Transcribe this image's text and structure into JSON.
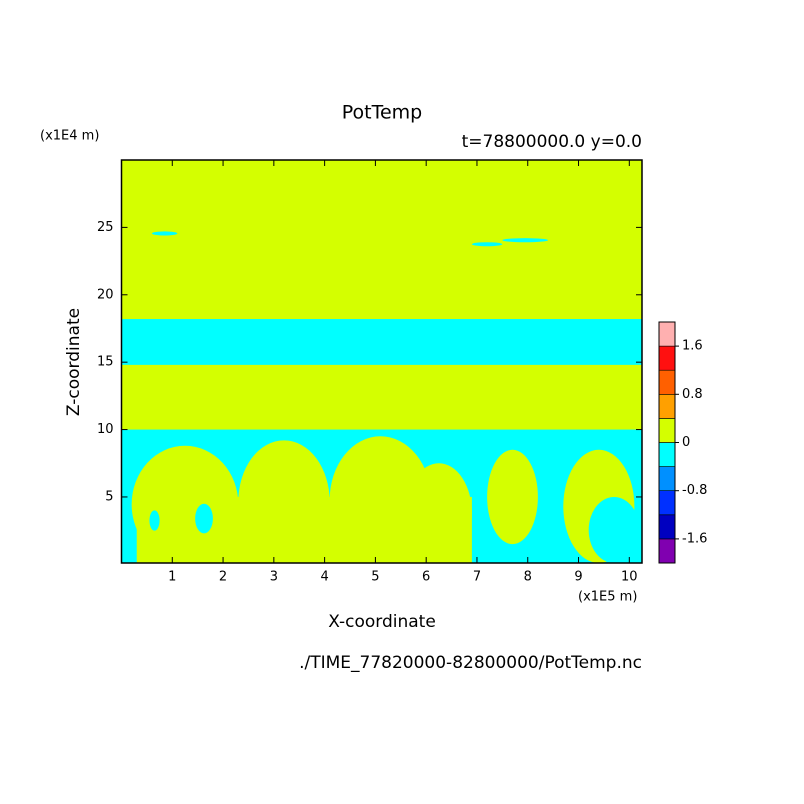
{
  "chart_data": {
    "type": "contour",
    "title": "PotTemp",
    "subtitle": "t=78800000.0 y=0.0",
    "x_label": "X-coordinate",
    "y_label": "Z-coordinate",
    "x_unit": "(x1E5 m)",
    "y_unit": "(x1E4 m)",
    "footer": "./TIME_77820000-82800000/PotTemp.nc",
    "xlim": [
      0,
      10.25
    ],
    "ylim": [
      0.1,
      30
    ],
    "xticks": [
      1,
      2,
      3,
      4,
      5,
      6,
      7,
      8,
      9,
      10
    ],
    "yticks": [
      5,
      10,
      15,
      20,
      25
    ],
    "colorbar": {
      "levels": [
        -2,
        -1.6,
        -1.2,
        -0.8,
        -0.4,
        0,
        0.4,
        0.8,
        1.2,
        1.6,
        2
      ],
      "colors": [
        "#8000b0",
        "#0000c0",
        "#0030ff",
        "#0090ff",
        "#00ffff",
        "#d4ff00",
        "#ffa000",
        "#ff6000",
        "#ff1010",
        "#ffb0b0"
      ],
      "ticks": [
        -1.6,
        -0.8,
        0,
        0.8,
        1.6
      ]
    },
    "background_level": 5,
    "regions": [
      {
        "shape": "rect",
        "x": [
          0,
          10.25
        ],
        "z": [
          14.8,
          18.2
        ],
        "level": 4
      },
      {
        "shape": "rect",
        "x": [
          0,
          10.25
        ],
        "z": [
          0.1,
          10
        ],
        "level": 4
      },
      {
        "shape": "rect",
        "x": [
          0.3,
          6.9
        ],
        "z": [
          0.1,
          5
        ],
        "level": 5
      },
      {
        "shape": "ellipse",
        "x": [
          0.2,
          2.3
        ],
        "z": [
          0.1,
          8.8
        ],
        "level": 5
      },
      {
        "shape": "ellipse",
        "x": [
          2.3,
          4.1
        ],
        "z": [
          0.1,
          9.2
        ],
        "level": 5
      },
      {
        "shape": "ellipse",
        "x": [
          4.1,
          6.1
        ],
        "z": [
          0.1,
          9.5
        ],
        "level": 5
      },
      {
        "shape": "ellipse",
        "x": [
          5.6,
          6.9
        ],
        "z": [
          0.1,
          7.5
        ],
        "level": 5
      },
      {
        "shape": "ellipse",
        "x": [
          7.2,
          8.2
        ],
        "z": [
          1.5,
          8.5
        ],
        "level": 5
      },
      {
        "shape": "ellipse",
        "x": [
          8.7,
          10.1
        ],
        "z": [
          0.1,
          8.5
        ],
        "level": 5
      },
      {
        "shape": "ellipse",
        "x": [
          9.2,
          10.2
        ],
        "z": [
          0.1,
          5
        ],
        "level": 4
      },
      {
        "shape": "ellipse",
        "x": [
          0.55,
          0.75
        ],
        "z": [
          2.5,
          4
        ],
        "level": 4
      },
      {
        "shape": "ellipse",
        "x": [
          1.45,
          1.8
        ],
        "z": [
          2.3,
          4.5
        ],
        "level": 4
      },
      {
        "shape": "ellipse",
        "x": [
          0.6,
          1.1
        ],
        "z": [
          24.4,
          24.7
        ],
        "level": 4
      },
      {
        "shape": "ellipse",
        "x": [
          6.9,
          7.5
        ],
        "z": [
          23.6,
          23.9
        ],
        "level": 4
      },
      {
        "shape": "ellipse",
        "x": [
          7.5,
          8.4
        ],
        "z": [
          23.9,
          24.2
        ],
        "level": 4
      }
    ]
  }
}
